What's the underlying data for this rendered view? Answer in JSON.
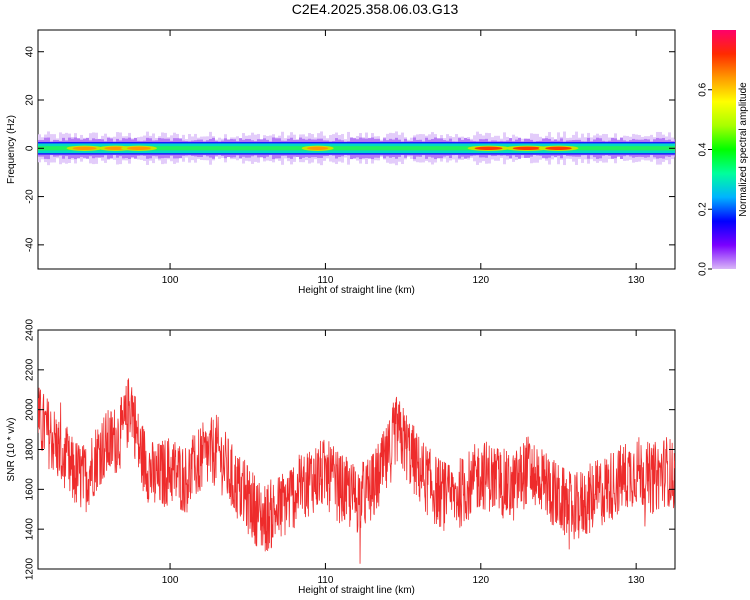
{
  "title": "C2E4.2025.358.06.03.G13",
  "chart_data": [
    {
      "type": "heatmap",
      "title": "C2E4.2025.358.06.03.G13",
      "xlabel": "Height of straight line (km)",
      "ylabel": "Frequency (Hz)",
      "xlim": [
        91.5,
        132.5
      ],
      "ylim": [
        -50,
        49
      ],
      "xticks": [
        100,
        110,
        120,
        130
      ],
      "yticks": [
        -40,
        -20,
        0,
        20,
        40
      ],
      "colorbar": {
        "label": "Normalized spectral amplitude",
        "range": [
          0.0,
          0.8
        ],
        "ticks": [
          "0.0",
          "0.2",
          "0.4",
          "0.6"
        ],
        "colors": [
          "#d9b7f7",
          "#7a00ff",
          "#0000ff",
          "#00b3ff",
          "#00ff9c",
          "#00ff00",
          "#a8ff00",
          "#ffff00",
          "#ff9a00",
          "#ff2a00",
          "#ff006a"
        ]
      },
      "band": {
        "center_hz": 0,
        "core_halfwidth_hz": 2,
        "halo_halfwidth_hz": 5,
        "hotspots": [
          {
            "x": 94.5,
            "amplitude": 0.55
          },
          {
            "x": 96.5,
            "amplitude": 0.5
          },
          {
            "x": 98.0,
            "amplitude": 0.55
          },
          {
            "x": 109.5,
            "amplitude": 0.45
          },
          {
            "x": 120.5,
            "amplitude": 0.7
          },
          {
            "x": 123.0,
            "amplitude": 0.75
          },
          {
            "x": 125.0,
            "amplitude": 0.65
          }
        ]
      }
    },
    {
      "type": "line",
      "xlabel": "Height of straight line (km)",
      "ylabel": "SNR (10 * v/v)",
      "xlim": [
        91.5,
        132.5
      ],
      "ylim": [
        1200,
        2400
      ],
      "xticks": [
        100,
        110,
        120,
        130
      ],
      "yticks": [
        1200,
        1400,
        1600,
        1800,
        2000,
        2200,
        2400
      ],
      "color": "#ee2b2b",
      "x": [
        91.5,
        92.5,
        93.5,
        94.5,
        95.5,
        96.5,
        97.0,
        97.5,
        98.0,
        99.0,
        100.0,
        101.0,
        102.0,
        103.0,
        104.0,
        105.0,
        106.0,
        107.0,
        108.0,
        109.0,
        110.0,
        111.0,
        112.0,
        113.0,
        114.0,
        114.5,
        115.0,
        116.0,
        117.0,
        118.0,
        119.0,
        120.0,
        121.0,
        122.0,
        123.0,
        124.0,
        125.0,
        126.0,
        127.0,
        128.0,
        129.0,
        130.0,
        131.0,
        132.0,
        132.5
      ],
      "y": [
        1950,
        1850,
        1700,
        1650,
        1800,
        1850,
        1900,
        2050,
        1800,
        1650,
        1700,
        1650,
        1750,
        1800,
        1650,
        1550,
        1450,
        1500,
        1580,
        1650,
        1680,
        1600,
        1550,
        1600,
        1750,
        1900,
        1850,
        1700,
        1600,
        1550,
        1600,
        1680,
        1650,
        1600,
        1700,
        1650,
        1550,
        1500,
        1550,
        1600,
        1650,
        1700,
        1650,
        1700,
        1650
      ],
      "noise_amplitude": 180
    }
  ]
}
